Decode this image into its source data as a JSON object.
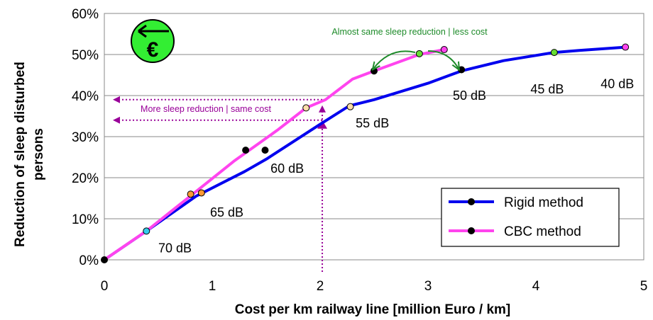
{
  "chart_data": {
    "type": "line",
    "xlabel": "Cost per km railway line [million Euro / km]",
    "ylabel_line1": "Reduction of sleep disturbed",
    "ylabel_line2": "persons",
    "xlim": [
      0,
      5
    ],
    "ylim": [
      0,
      0.6
    ],
    "x_ticks": [
      0,
      1,
      2,
      3,
      4,
      5
    ],
    "x_tick_labels": [
      "0",
      "1",
      "2",
      "3",
      "4",
      "5"
    ],
    "y_ticks": [
      0,
      0.1,
      0.2,
      0.3,
      0.4,
      0.5,
      0.6
    ],
    "y_tick_labels": [
      "0%",
      "10%",
      "20%",
      "30%",
      "40%",
      "50%",
      "60%"
    ],
    "grid": "horizontal",
    "legend_position": "bottom-right",
    "series": [
      {
        "name": "Rigid method",
        "color": "#0000ee",
        "x": [
          0,
          0.39,
          0.85,
          1.3,
          1.5,
          2.0,
          2.27,
          2.5,
          3.0,
          3.31,
          3.7,
          4.17,
          4.4,
          4.83
        ],
        "y": [
          0,
          0.07,
          0.155,
          0.215,
          0.245,
          0.33,
          0.375,
          0.39,
          0.43,
          0.46,
          0.485,
          0.505,
          0.51,
          0.518
        ]
      },
      {
        "name": "CBC method",
        "color": "#ff44ee",
        "x": [
          0,
          0.4,
          0.82,
          1.2,
          1.6,
          1.87,
          2.05,
          2.3,
          2.5,
          2.92,
          3.15
        ],
        "y": [
          0,
          0.072,
          0.16,
          0.24,
          0.315,
          0.37,
          0.39,
          0.44,
          0.46,
          0.5,
          0.512
        ]
      }
    ],
    "markers": [
      {
        "x": 0,
        "y": 0,
        "color": "#000000"
      },
      {
        "x": 0.39,
        "y": 0.07,
        "color": "#33ccee"
      },
      {
        "x": 0.8,
        "y": 0.16,
        "color": "#ff9933"
      },
      {
        "x": 0.9,
        "y": 0.163,
        "color": "#ff9933"
      },
      {
        "x": 1.31,
        "y": 0.267,
        "color": "#000000"
      },
      {
        "x": 1.49,
        "y": 0.267,
        "color": "#000000"
      },
      {
        "x": 1.87,
        "y": 0.37,
        "color": "#ffddaa"
      },
      {
        "x": 2.28,
        "y": 0.373,
        "color": "#ffddaa"
      },
      {
        "x": 2.5,
        "y": 0.46,
        "color": "#000000"
      },
      {
        "x": 3.31,
        "y": 0.463,
        "color": "#000000"
      },
      {
        "x": 2.92,
        "y": 0.502,
        "color": "#66dd33"
      },
      {
        "x": 4.17,
        "y": 0.505,
        "color": "#66dd33"
      },
      {
        "x": 3.15,
        "y": 0.512,
        "color": "#ff44ee"
      },
      {
        "x": 4.83,
        "y": 0.518,
        "color": "#ff44ee"
      }
    ],
    "db_labels": [
      {
        "text": "70 dB",
        "x": 0.5,
        "y": 0.018
      },
      {
        "text": "65 dB",
        "x": 0.98,
        "y": 0.105
      },
      {
        "text": "60 dB",
        "x": 1.54,
        "y": 0.212
      },
      {
        "text": "55 dB",
        "x": 2.33,
        "y": 0.322
      },
      {
        "text": "50 dB",
        "x": 3.23,
        "y": 0.39
      },
      {
        "text": "45 dB",
        "x": 3.95,
        "y": 0.405
      },
      {
        "text": "40 dB",
        "x": 4.6,
        "y": 0.418
      }
    ],
    "annotations": {
      "less_cost": "Almost same sleep reduction | less cost",
      "same_cost": "More sleep reduction | same cost",
      "euro_symbol": "€"
    },
    "annotation_colors": {
      "green": "#1e8b2a",
      "purple": "#990099",
      "euro_fill": "#33ee33"
    }
  }
}
